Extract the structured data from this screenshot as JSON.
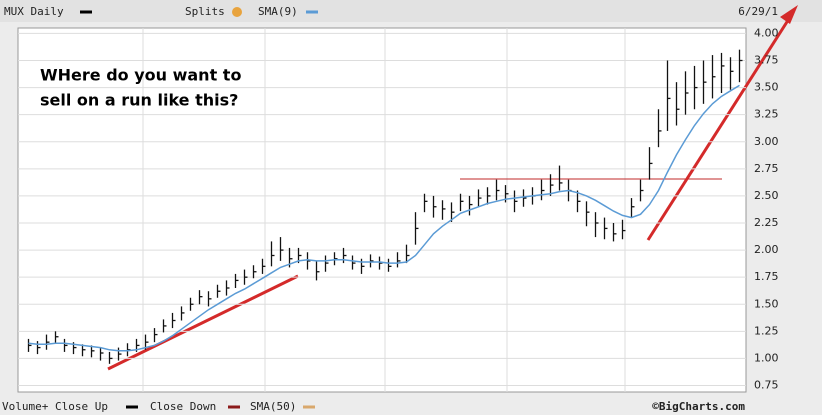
{
  "header": {
    "symbol": "MUX Daily",
    "splits": "Splits",
    "date": "6/29/1"
  },
  "footer": {
    "volume": "Volume+ Close Up",
    "close_down": "Close Down",
    "sma50": "SMA(50)",
    "credit": "©BigCharts.com"
  },
  "chart_data": {
    "type": "ohlc",
    "annotations": [
      "WHere do you want to",
      "sell on a run like this?"
    ],
    "high": [
      1.18,
      1.16,
      1.22,
      1.25,
      1.18,
      1.15,
      1.13,
      1.12,
      1.1,
      1.06,
      1.1,
      1.14,
      1.18,
      1.22,
      1.28,
      1.36,
      1.42,
      1.48,
      1.56,
      1.63,
      1.62,
      1.68,
      1.72,
      1.78,
      1.82,
      1.86,
      1.92,
      2.08,
      2.12,
      2.02,
      2.02,
      1.98,
      1.9,
      1.95,
      1.98,
      2.02,
      1.95,
      1.92,
      1.96,
      1.94,
      1.92,
      1.98,
      2.05,
      2.35,
      2.52,
      2.5,
      2.46,
      2.44,
      2.52,
      2.5,
      2.56,
      2.58,
      2.65,
      2.6,
      2.55,
      2.56,
      2.58,
      2.65,
      2.7,
      2.78,
      2.65,
      2.55,
      2.45,
      2.35,
      2.3,
      2.25,
      2.28,
      2.48,
      2.65,
      2.95,
      3.3,
      3.75,
      3.55,
      3.65,
      3.7,
      3.75,
      3.8,
      3.82,
      3.78,
      3.85
    ],
    "low": [
      1.06,
      1.04,
      1.08,
      1.14,
      1.06,
      1.04,
      1.02,
      1.01,
      0.98,
      0.95,
      0.98,
      1.02,
      1.06,
      1.08,
      1.15,
      1.24,
      1.28,
      1.35,
      1.44,
      1.5,
      1.48,
      1.56,
      1.58,
      1.65,
      1.68,
      1.74,
      1.78,
      1.85,
      1.9,
      1.84,
      1.88,
      1.82,
      1.72,
      1.8,
      1.86,
      1.88,
      1.82,
      1.78,
      1.84,
      1.82,
      1.8,
      1.84,
      1.88,
      2.05,
      2.35,
      2.3,
      2.28,
      2.26,
      2.36,
      2.32,
      2.4,
      2.42,
      2.46,
      2.44,
      2.35,
      2.4,
      2.42,
      2.46,
      2.5,
      2.55,
      2.45,
      2.35,
      2.22,
      2.12,
      2.1,
      2.08,
      2.1,
      2.3,
      2.45,
      2.65,
      2.95,
      3.1,
      3.15,
      3.25,
      3.3,
      3.35,
      3.4,
      3.45,
      3.48,
      3.55
    ],
    "close": [
      1.12,
      1.1,
      1.15,
      1.2,
      1.12,
      1.1,
      1.08,
      1.07,
      1.05,
      1.0,
      1.04,
      1.08,
      1.12,
      1.15,
      1.22,
      1.3,
      1.35,
      1.42,
      1.5,
      1.57,
      1.55,
      1.62,
      1.65,
      1.72,
      1.75,
      1.8,
      1.85,
      1.95,
      2.0,
      1.92,
      1.95,
      1.9,
      1.8,
      1.88,
      1.92,
      1.95,
      1.88,
      1.85,
      1.9,
      1.88,
      1.85,
      1.9,
      1.95,
      2.2,
      2.45,
      2.4,
      2.38,
      2.35,
      2.45,
      2.42,
      2.48,
      2.5,
      2.55,
      2.52,
      2.45,
      2.48,
      2.5,
      2.55,
      2.6,
      2.62,
      2.55,
      2.45,
      2.35,
      2.25,
      2.2,
      2.15,
      2.18,
      2.4,
      2.55,
      2.8,
      3.1,
      3.4,
      3.3,
      3.45,
      3.5,
      3.55,
      3.6,
      3.7,
      3.65,
      3.75
    ],
    "bar_color": "#111111",
    "series": [
      {
        "name": "SMA(9)",
        "color": "#5b9bd5",
        "values": [
          1.14,
          1.13,
          1.13,
          1.14,
          1.14,
          1.13,
          1.12,
          1.11,
          1.1,
          1.08,
          1.07,
          1.07,
          1.08,
          1.1,
          1.12,
          1.16,
          1.21,
          1.27,
          1.33,
          1.39,
          1.45,
          1.5,
          1.55,
          1.6,
          1.64,
          1.69,
          1.74,
          1.79,
          1.84,
          1.87,
          1.9,
          1.91,
          1.9,
          1.9,
          1.91,
          1.91,
          1.9,
          1.89,
          1.89,
          1.89,
          1.88,
          1.88,
          1.89,
          1.95,
          2.05,
          2.15,
          2.22,
          2.28,
          2.34,
          2.37,
          2.4,
          2.43,
          2.45,
          2.47,
          2.48,
          2.49,
          2.5,
          2.51,
          2.52,
          2.54,
          2.55,
          2.53,
          2.5,
          2.46,
          2.41,
          2.36,
          2.32,
          2.3,
          2.33,
          2.42,
          2.55,
          2.72,
          2.88,
          3.02,
          3.15,
          3.26,
          3.35,
          3.42,
          3.47,
          3.52
        ]
      }
    ],
    "ylim": [
      0.69,
      4.05
    ],
    "yticks": [
      {
        "value": 0.75,
        "label": "0.75"
      },
      {
        "value": 1,
        "label": "1.00"
      },
      {
        "value": 1.25,
        "label": "1.25"
      },
      {
        "value": 1.5,
        "label": "1.50"
      },
      {
        "value": 1.75,
        "label": "1.75"
      },
      {
        "value": 2,
        "label": "2.00"
      },
      {
        "value": 2.25,
        "label": "2.25"
      },
      {
        "value": 2.5,
        "label": "2.50"
      },
      {
        "value": 2.75,
        "label": "2.75"
      },
      {
        "value": 3,
        "label": "3.00"
      },
      {
        "value": 3.25,
        "label": "3.25"
      },
      {
        "value": 3.5,
        "label": "3.50"
      },
      {
        "value": 3.75,
        "label": "3.75"
      },
      {
        "value": 4,
        "label": "4.00"
      }
    ],
    "grid": true
  }
}
